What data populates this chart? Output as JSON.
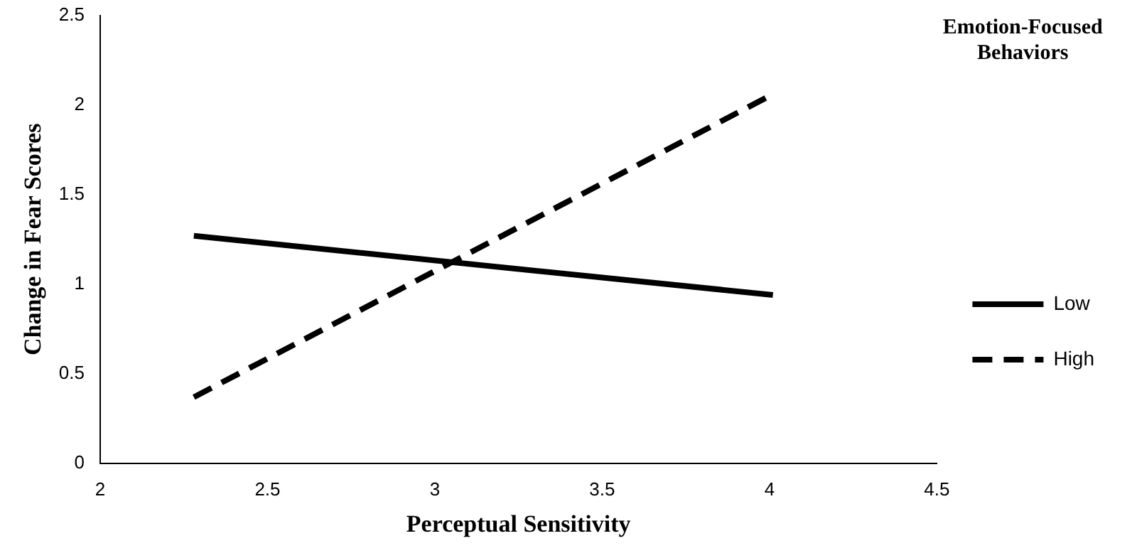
{
  "chart_data": {
    "type": "line",
    "xlabel": "Perceptual Sensitivity",
    "ylabel": "Change in Fear Scores",
    "legend_title": "Emotion-Focused Behaviors",
    "x": [
      2.28,
      4.01
    ],
    "series": [
      {
        "name": "Low",
        "color": "#000000",
        "values": [
          1.27,
          0.94
        ],
        "line_style": "solid"
      },
      {
        "name": "High",
        "color": "#000000",
        "values": [
          0.37,
          2.06
        ],
        "line_style": "dashed"
      }
    ],
    "xlim": [
      2,
      4.5
    ],
    "xticks": [
      2,
      2.5,
      3,
      3.5,
      4,
      4.5
    ],
    "ylim": [
      0,
      2.5
    ],
    "yticks": [
      0,
      0.5,
      1,
      1.5,
      2,
      2.5
    ],
    "grid": false,
    "legend": "right",
    "marker": "none"
  }
}
